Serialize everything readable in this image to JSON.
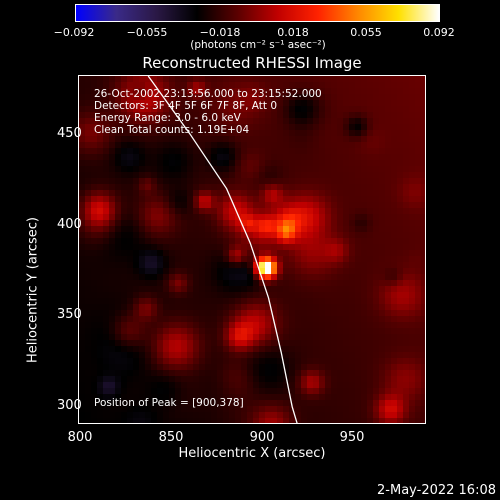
{
  "colorbar": {
    "tick_labels": [
      "−0.092",
      "−0.055",
      "−0.018",
      "0.018",
      "0.055",
      "0.092"
    ],
    "unit_label": "(photons cm⁻² s⁻¹ asec⁻²)",
    "min": -0.092,
    "max": 0.092,
    "colors": [
      "#0000ff",
      "#3a2a88",
      "#2a1845",
      "#000000",
      "#5a0000",
      "#c00000",
      "#ff2200",
      "#ff8800",
      "#ffe000",
      "#ffffff"
    ]
  },
  "plot": {
    "title": "Reconstructed RHESSI Image",
    "annotations": [
      "26-Oct-2002 23:13:56.000 to 23:15:52.000",
      "Detectors: 3F 4F 5F 6F 7F 8F, Att 0",
      "Energy Range: 3.0 - 6.0 keV",
      "Clean     Total counts: 1.19E+04"
    ],
    "peak_label": "Position of Peak = [900,378]",
    "x_axis": {
      "label": "Heliocentric X (arcsec)",
      "ticks": [
        "800",
        "850",
        "900",
        "950"
      ],
      "range": [
        799,
        990
      ]
    },
    "y_axis": {
      "label": "Heliocentric Y (arcsec)",
      "ticks": [
        "300",
        "350",
        "400",
        "450"
      ],
      "range": [
        290,
        482
      ]
    },
    "limb_points": [
      [
        837,
        482
      ],
      [
        860,
        450
      ],
      [
        880,
        420
      ],
      [
        893,
        390
      ],
      [
        903,
        360
      ],
      [
        910,
        330
      ],
      [
        916,
        300
      ],
      [
        919,
        290
      ]
    ],
    "peak": [
      900,
      378
    ]
  },
  "footer": {
    "timestamp": "2-May-2022 16:08"
  }
}
